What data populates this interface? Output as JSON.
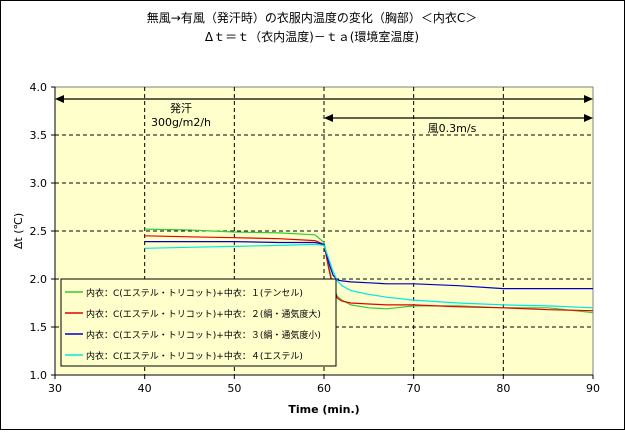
{
  "chart_data": {
    "type": "line",
    "title": "無風→有風（発汗時）の衣服内温度の変化（胸部）＜内衣C＞",
    "subtitle": "Δｔ＝ｔ（衣内温度)－ｔａ(環境室温度)",
    "xlabel": "Time (min.)",
    "ylabel": "Δt (℃)",
    "xlim": [
      30,
      90
    ],
    "ylim": [
      1.0,
      4.0
    ],
    "x_ticks": [
      "30",
      "40",
      "50",
      "60",
      "70",
      "80",
      "90"
    ],
    "y_ticks": [
      "1.0",
      "1.5",
      "2.0",
      "2.5",
      "3.0",
      "3.5",
      "4.0"
    ],
    "grid": true,
    "legend_position": "lower-left",
    "annotations": [
      {
        "text": "発汗",
        "x_start": 30,
        "x_end": 90
      },
      {
        "text": "300g/m2/h"
      },
      {
        "text": "風0.3m/s",
        "x_start": 60,
        "x_end": 90
      }
    ],
    "series": [
      {
        "name": "内衣：C(エステル・トリコット)+中衣：１(テンセル)",
        "color": "#33cc33",
        "x": [
          40,
          45,
          50,
          55,
          59,
          60,
          60.5,
          61,
          61.5,
          62,
          63,
          65,
          67,
          70,
          75,
          80,
          85,
          90
        ],
        "values": [
          2.52,
          2.51,
          2.49,
          2.48,
          2.46,
          2.38,
          2.15,
          1.93,
          1.82,
          1.78,
          1.73,
          1.7,
          1.69,
          1.72,
          1.72,
          1.7,
          1.7,
          1.65
        ]
      },
      {
        "name": "内衣：C(エステル・トリコット)+中衣：２(絹・通気度大)",
        "color": "#e60000",
        "x": [
          40,
          45,
          50,
          55,
          59,
          60,
          60.5,
          61,
          61.5,
          62,
          63,
          65,
          67,
          70,
          75,
          80,
          85,
          90
        ],
        "values": [
          2.45,
          2.44,
          2.43,
          2.42,
          2.4,
          2.36,
          2.12,
          1.91,
          1.8,
          1.77,
          1.75,
          1.74,
          1.73,
          1.73,
          1.71,
          1.7,
          1.68,
          1.67
        ]
      },
      {
        "name": "内衣：C(エステル・トリコット)+中衣：３(絹・通気度小)",
        "color": "#0000cc",
        "x": [
          40,
          45,
          50,
          55,
          59,
          60,
          60.5,
          61,
          61.5,
          62,
          63,
          65,
          67,
          70,
          75,
          80,
          85,
          90
        ],
        "values": [
          2.39,
          2.39,
          2.39,
          2.38,
          2.38,
          2.36,
          2.18,
          2.04,
          1.99,
          1.98,
          1.97,
          1.96,
          1.95,
          1.95,
          1.93,
          1.9,
          1.9,
          1.9
        ]
      },
      {
        "name": "内衣：C(エステル・トリコット)+中衣：４(エステル)",
        "color": "#00e6e6",
        "x": [
          40,
          45,
          50,
          55,
          59,
          60,
          60.5,
          61,
          61.5,
          62,
          63,
          65,
          67,
          70,
          75,
          80,
          85,
          90
        ],
        "values": [
          2.32,
          2.33,
          2.34,
          2.35,
          2.36,
          2.35,
          2.22,
          2.08,
          1.98,
          1.93,
          1.88,
          1.84,
          1.81,
          1.78,
          1.75,
          1.73,
          1.72,
          1.7
        ]
      }
    ]
  }
}
